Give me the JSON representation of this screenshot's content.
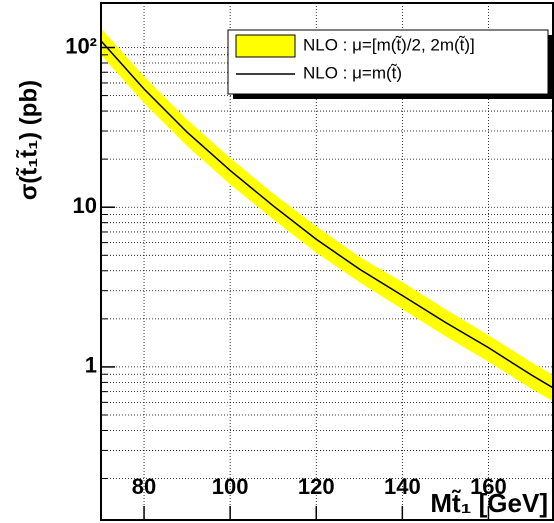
{
  "chart_data": {
    "type": "band-line",
    "xlabel": "Mt̃₁ [GeV]",
    "ylabel": "σ(t̃₁t̃₁) (pb)",
    "x": [
      70,
      80,
      90,
      100,
      110,
      120,
      130,
      140,
      150,
      160,
      170,
      175
    ],
    "series": [
      {
        "name": "NLO : μ=[m(t̃)/2, 2m(t̃)]",
        "color": "#ffff00",
        "lower": [
          90,
          45,
          24.2,
          13.9,
          8.4,
          5.2,
          3.4,
          2.3,
          1.56,
          1.08,
          0.73,
          0.61
        ],
        "upper": [
          132,
          66,
          35.4,
          20.4,
          12.2,
          7.6,
          4.9,
          3.4,
          2.3,
          1.58,
          1.07,
          0.89
        ]
      },
      {
        "name": "NLO : μ=m(t̃)",
        "color": "#000000",
        "values": [
          110,
          55,
          29.5,
          17,
          10.2,
          6.3,
          4.1,
          2.8,
          1.9,
          1.32,
          0.89,
          0.74
        ]
      }
    ],
    "xlim": [
      70,
      175
    ],
    "xticks": [
      80,
      100,
      120,
      140,
      160
    ],
    "ylim": [
      0.11,
      190
    ],
    "ylog": true,
    "yticks": [
      1,
      10,
      {
        "value": 100,
        "label": "10²"
      }
    ],
    "yminorticks": [
      0.2,
      0.3,
      0.4,
      0.5,
      0.6,
      0.7,
      0.8,
      0.9,
      2,
      3,
      4,
      5,
      6,
      7,
      8,
      9,
      20,
      30,
      40,
      50,
      60,
      70,
      80,
      90
    ],
    "grid": true
  }
}
